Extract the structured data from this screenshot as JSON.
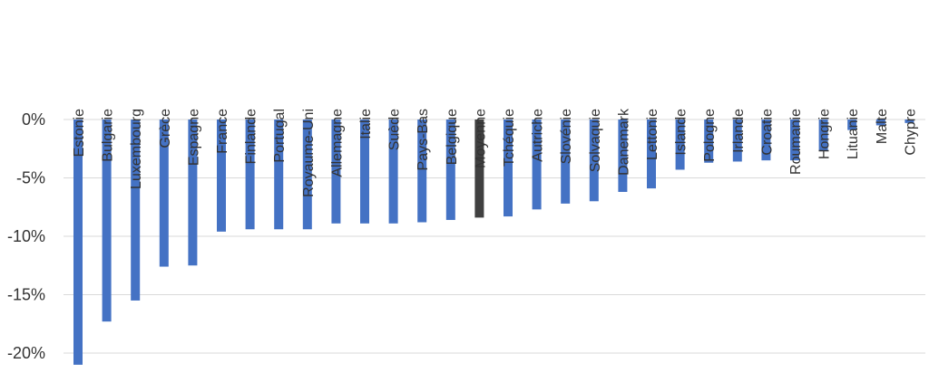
{
  "chart_data": {
    "type": "bar",
    "title": "",
    "xlabel": "",
    "ylabel": "",
    "ylim": [
      -20,
      0
    ],
    "y_ticks": [
      0,
      -5,
      -10,
      -15,
      -20
    ],
    "y_tick_labels": [
      "0%",
      "-5%",
      "-10%",
      "-15%",
      "-20%"
    ],
    "grid": true,
    "legend": "none",
    "categories": [
      "Estonie",
      "Bulgarie",
      "Luxembourg",
      "Grèce",
      "Espagne",
      "France",
      "Finlande",
      "Portugal",
      "Royaume-Uni",
      "Allemagne",
      "Italie",
      "Suède",
      "Pays-Bas",
      "Belgique",
      "Moyenne",
      "Tchéquie",
      "Autriche",
      "Slovénie",
      "Solvaquie",
      "Danemark",
      "Lettonie",
      "Islande",
      "Pologne",
      "Irlande",
      "Croatie",
      "Roumanie",
      "Hongrie",
      "Lituanie",
      "Malte",
      "Chypre"
    ],
    "values": [
      -21.0,
      -17.3,
      -15.5,
      -12.6,
      -12.5,
      -9.6,
      -9.4,
      -9.4,
      -9.4,
      -8.9,
      -8.9,
      -8.9,
      -8.8,
      -8.6,
      -8.4,
      -8.3,
      -7.7,
      -7.2,
      -7.0,
      -6.2,
      -5.9,
      -4.3,
      -3.7,
      -3.6,
      -3.5,
      -3.5,
      -2.7,
      -0.9,
      -0.5,
      -0.3
    ],
    "colors": {
      "default": "#4472c4",
      "highlight": "#404040"
    },
    "highlight_category": "Moyenne"
  }
}
